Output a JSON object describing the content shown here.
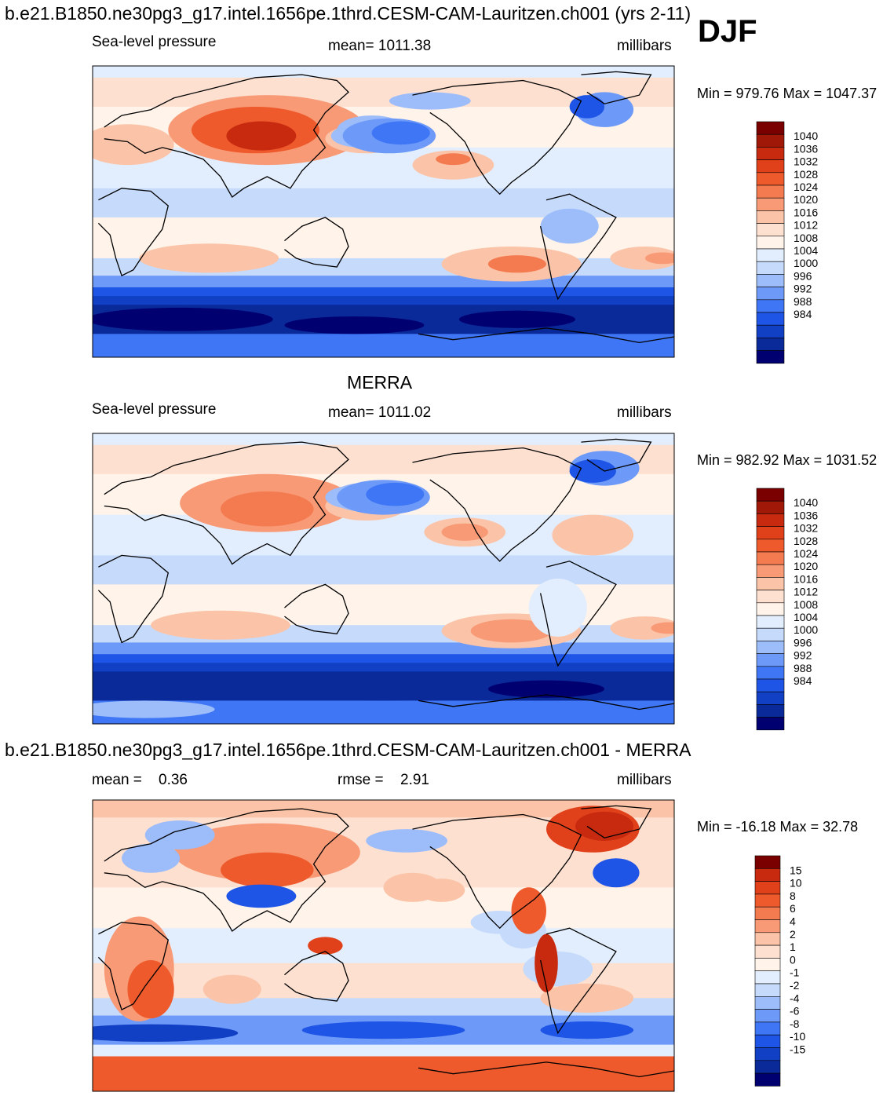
{
  "season": "DJF",
  "units": "millibars",
  "colors": {
    "psl_levels": [
      "#000070",
      "#0a2a9a",
      "#1140c4",
      "#1f55e6",
      "#3f76f5",
      "#6d9af8",
      "#9cbcfa",
      "#c6dafb",
      "#e2eefd",
      "#fff3ea",
      "#fde0d0",
      "#fbc4a8",
      "#f89a76",
      "#f47a50",
      "#ee5a2c",
      "#e0401a",
      "#c82a10",
      "#a01808",
      "#7a0000"
    ],
    "diff_levels": [
      "#000070",
      "#0a2a9a",
      "#1140c4",
      "#1f55e6",
      "#3f76f5",
      "#6d9af8",
      "#9cbcfa",
      "#c6dafb",
      "#e2eefd",
      "#fff3ea",
      "#fde0d0",
      "#fbc4a8",
      "#f89a76",
      "#f47a50",
      "#ee5a2c",
      "#e0401a",
      "#c82a10",
      "#7a0000"
    ]
  },
  "chart_data": [
    {
      "type": "heatmap",
      "title": "b.e21.B1850.ne30pg3_g17.intel.1656pe.1thrd.CESM-CAM-Lauritzen.ch001 (yrs 2-11)",
      "left_label": "Sea-level pressure",
      "mean_text": "mean= 1011.38",
      "units": "millibars",
      "minmax": "Min = 979.76 Max = 1047.37",
      "colorbar_labels": [
        "1040",
        "1036",
        "1032",
        "1028",
        "1024",
        "1020",
        "1016",
        "1012",
        "1008",
        "1004",
        "1000",
        "996",
        "992",
        "988",
        "984"
      ],
      "fields": {
        "siberian_high": 1036,
        "aleutian_low": 1000,
        "icelandic_low": 996,
        "southern_trough": 984
      }
    },
    {
      "type": "heatmap",
      "title": "MERRA",
      "left_label": "Sea-level pressure",
      "mean_text": "mean= 1011.02",
      "units": "millibars",
      "minmax": "Min = 982.92 Max = 1031.52",
      "colorbar_labels": [
        "1040",
        "1036",
        "1032",
        "1028",
        "1024",
        "1020",
        "1016",
        "1012",
        "1008",
        "1004",
        "1000",
        "996",
        "992",
        "988",
        "984"
      ],
      "fields": {
        "siberian_high": 1030,
        "aleutian_low": 998,
        "icelandic_low": 998,
        "southern_trough": 986
      }
    },
    {
      "type": "heatmap",
      "title": "b.e21.B1850.ne30pg3_g17.intel.1656pe.1thrd.CESM-CAM-Lauritzen.ch001 - MERRA",
      "mean_label": "mean =",
      "mean_value": "0.36",
      "rmse_label": "rmse =",
      "rmse_value": "2.91",
      "units": "millibars",
      "minmax": "Min = -16.18 Max =  32.78",
      "colorbar_labels": [
        "15",
        "10",
        "8",
        "6",
        "4",
        "2",
        "1",
        "0",
        "-1",
        "-2",
        "-4",
        "-6",
        "-8",
        "-10",
        "-15"
      ],
      "fields": {
        "antarctic": 10,
        "southern_ocean": -6,
        "greenland": 12
      }
    }
  ]
}
